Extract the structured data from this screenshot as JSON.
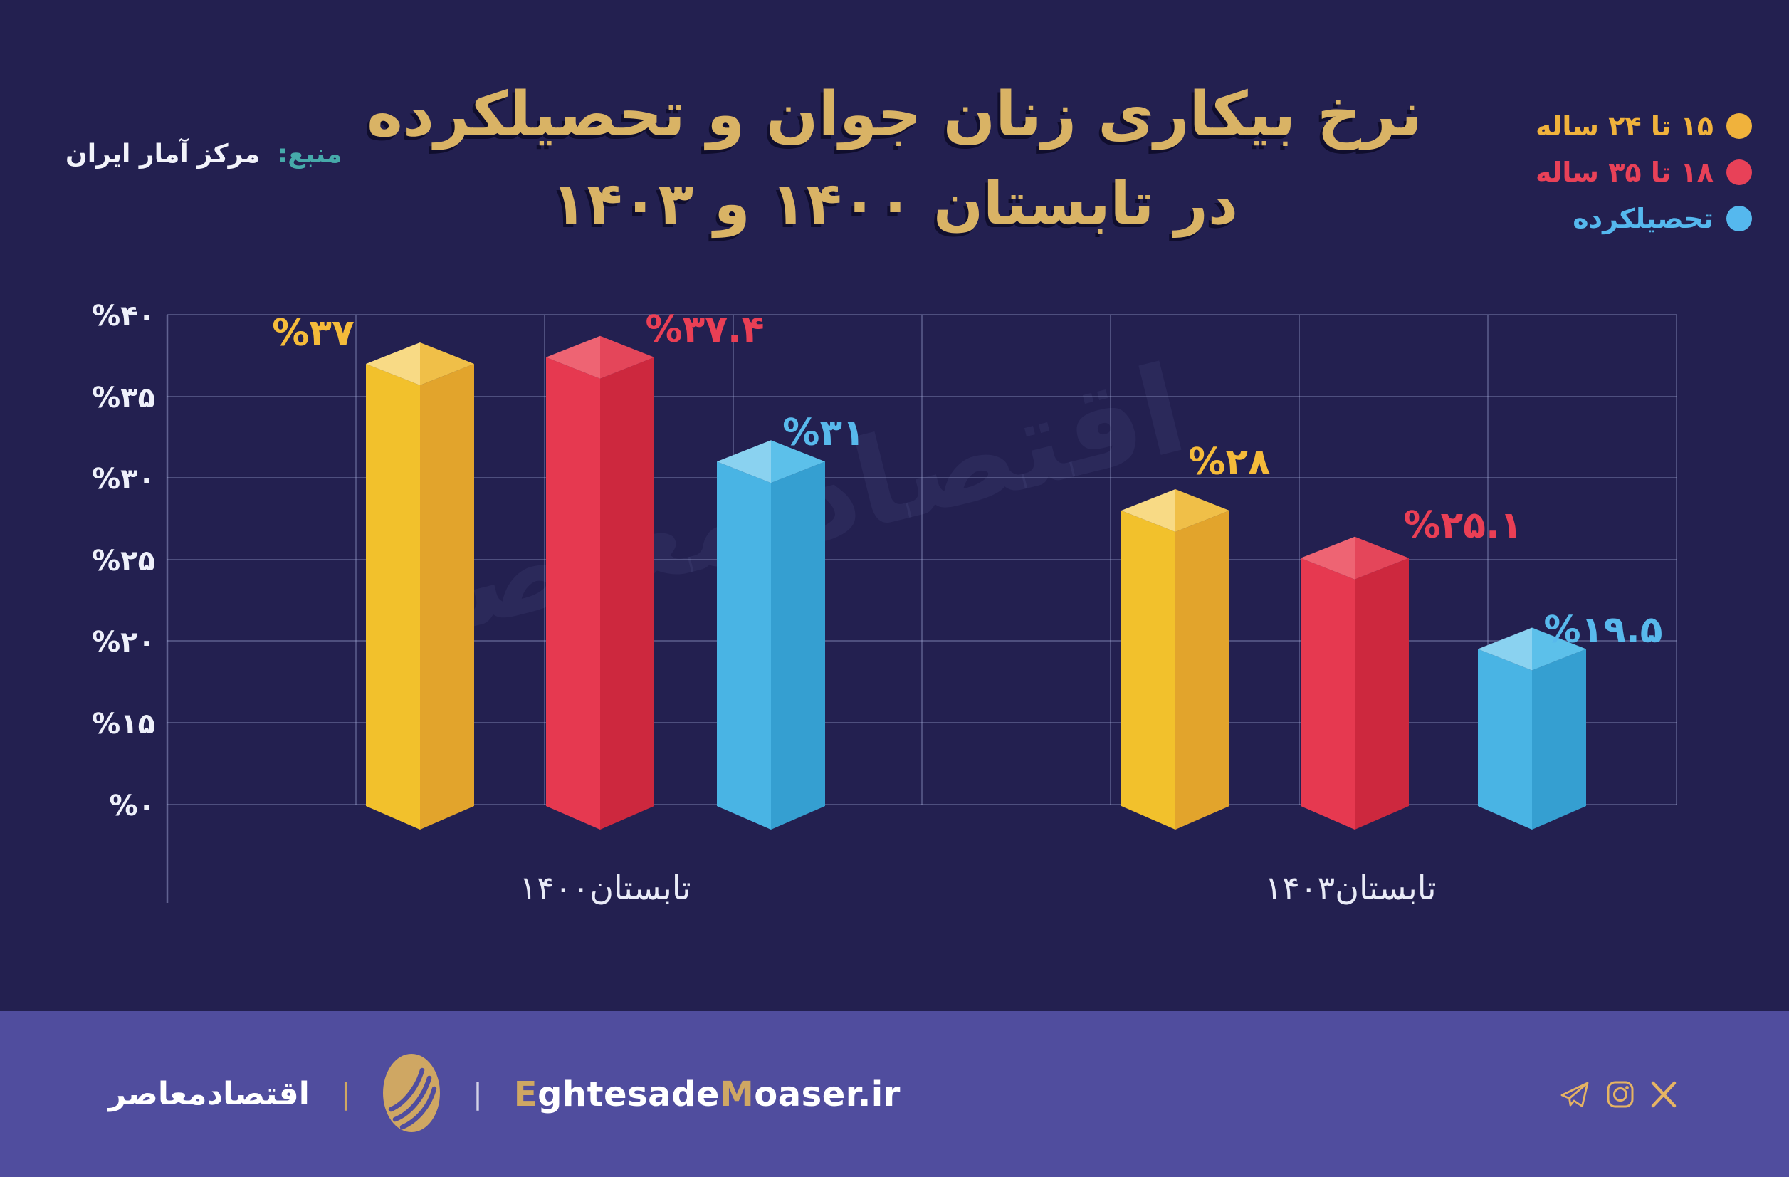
{
  "title": {
    "line1": "نرخ بیکاری زنان جوان و تحصیلکرده",
    "line2": "در تابستان ۱۴۰۰ و ۱۴۰۳"
  },
  "source": {
    "label": "منبع:",
    "value": "مرکز آمار ایران"
  },
  "legend": [
    {
      "label": "۱۵ تا ۲۴ ساله",
      "color": "#f0b23c"
    },
    {
      "label": "۱۸ تا ۳۵ ساله",
      "color": "#e84158"
    },
    {
      "label": "تحصیلکرده",
      "color": "#55b8ee"
    }
  ],
  "chart_data": {
    "type": "bar",
    "categories": [
      "تابستان۱۴۰۰",
      "تابستان۱۴۰۳"
    ],
    "series": [
      {
        "name": "۱۵ تا ۲۴ ساله",
        "values": [
          37,
          28
        ],
        "value_labels": [
          "%۳۷",
          "%۲۸"
        ],
        "label_color": "#f5bb3a",
        "colors": {
          "top_light": "#f8da85",
          "top_dark": "#f0bf48",
          "face_light": "#f2c12c",
          "face_dark": "#e2a42c"
        }
      },
      {
        "name": "۱۸ تا ۳۵ ساله",
        "values": [
          37.4,
          25.1
        ],
        "value_labels": [
          "%۳۷.۴",
          "%۲۵.۱"
        ],
        "label_color": "#ea3f55",
        "colors": {
          "top_light": "#ee6473",
          "top_dark": "#e4465a",
          "face_light": "#e63950",
          "face_dark": "#cd283e"
        }
      },
      {
        "name": "تحصیلکرده",
        "values": [
          31,
          19.5
        ],
        "value_labels": [
          "%۳۱",
          "%۱۹.۵"
        ],
        "label_color": "#58b9ec",
        "colors": {
          "top_light": "#8ad2f0",
          "top_dark": "#5cc0ea",
          "face_light": "#49b4e4",
          "face_dark": "#359fd1"
        }
      }
    ],
    "y_ticks": [
      {
        "label": "%۴۰",
        "value": 40
      },
      {
        "label": "%۳۵",
        "value": 35
      },
      {
        "label": "%۳۰",
        "value": 30
      },
      {
        "label": "%۲۵",
        "value": 25
      },
      {
        "label": "%۲۰",
        "value": 20
      },
      {
        "label": "%۱۵",
        "value": 15
      },
      {
        "label": "%۰",
        "value": 0
      }
    ],
    "ylim": [
      0,
      42
    ],
    "grid": true,
    "legend_position": "top-right",
    "bar_style": "3d-isometric-column"
  },
  "watermark": "اقتصاد معاصر",
  "footer": {
    "brand": "اقتصادمعاصر",
    "divider": "|",
    "site": {
      "p1": "E",
      "p2": "ghtesade",
      "p3": "M",
      "p4": "oaser.ir"
    },
    "accent": "#cfa763",
    "icons": [
      "telegram-icon",
      "instagram-icon",
      "x-icon"
    ]
  },
  "colors": {
    "background": "#232050",
    "footer_bg": "#504d9e",
    "title": "#d9b365",
    "source_label": "#46aaaa",
    "text": "#ffffff",
    "grid": "#aab4e0"
  }
}
